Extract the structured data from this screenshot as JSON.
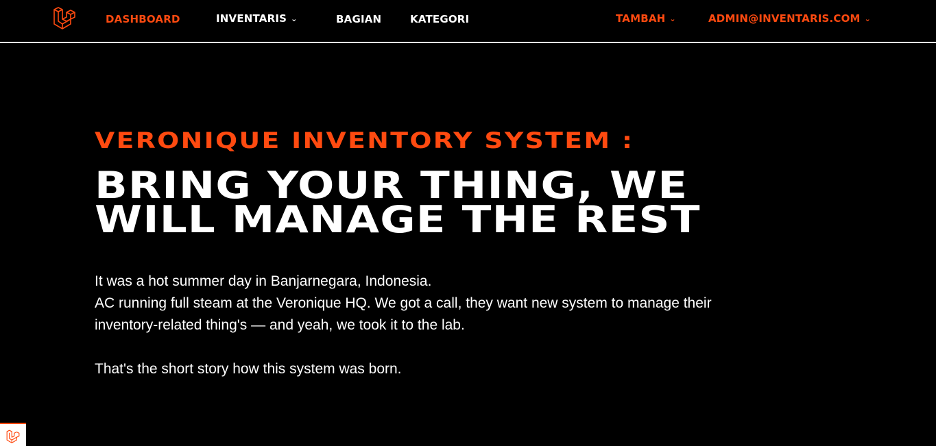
{
  "nav": {
    "logo_icon": "laravel-logo-icon",
    "dashboard": "DASHBOARD",
    "inventaris": "INVENTARIS",
    "bagian": "BAGIAN",
    "kategori": "KATEGORI",
    "tambah": "TAMBAH",
    "account": "ADMIN@INVENTARIS.COM",
    "dropdown_icon": "chevron-down-icon"
  },
  "hero": {
    "kicker": "VERONIQUE INVENTORY SYSTEM :",
    "title_line1": "BRING YOUR THING, WE",
    "title_line2": "WILL MANAGE THE REST"
  },
  "story": {
    "line1": "It was a hot summer day in Banjarnegara, Indonesia.",
    "line2": "AC running full steam at the Veronique HQ. We got a call, they want new system to manage their",
    "line3": "inventory-related thing's — and yeah, we took it to the lab.",
    "line4": "That's the short story how this system was born."
  },
  "colors": {
    "accent": "#ff4a10",
    "background": "#000000",
    "text": "#ffffff"
  }
}
